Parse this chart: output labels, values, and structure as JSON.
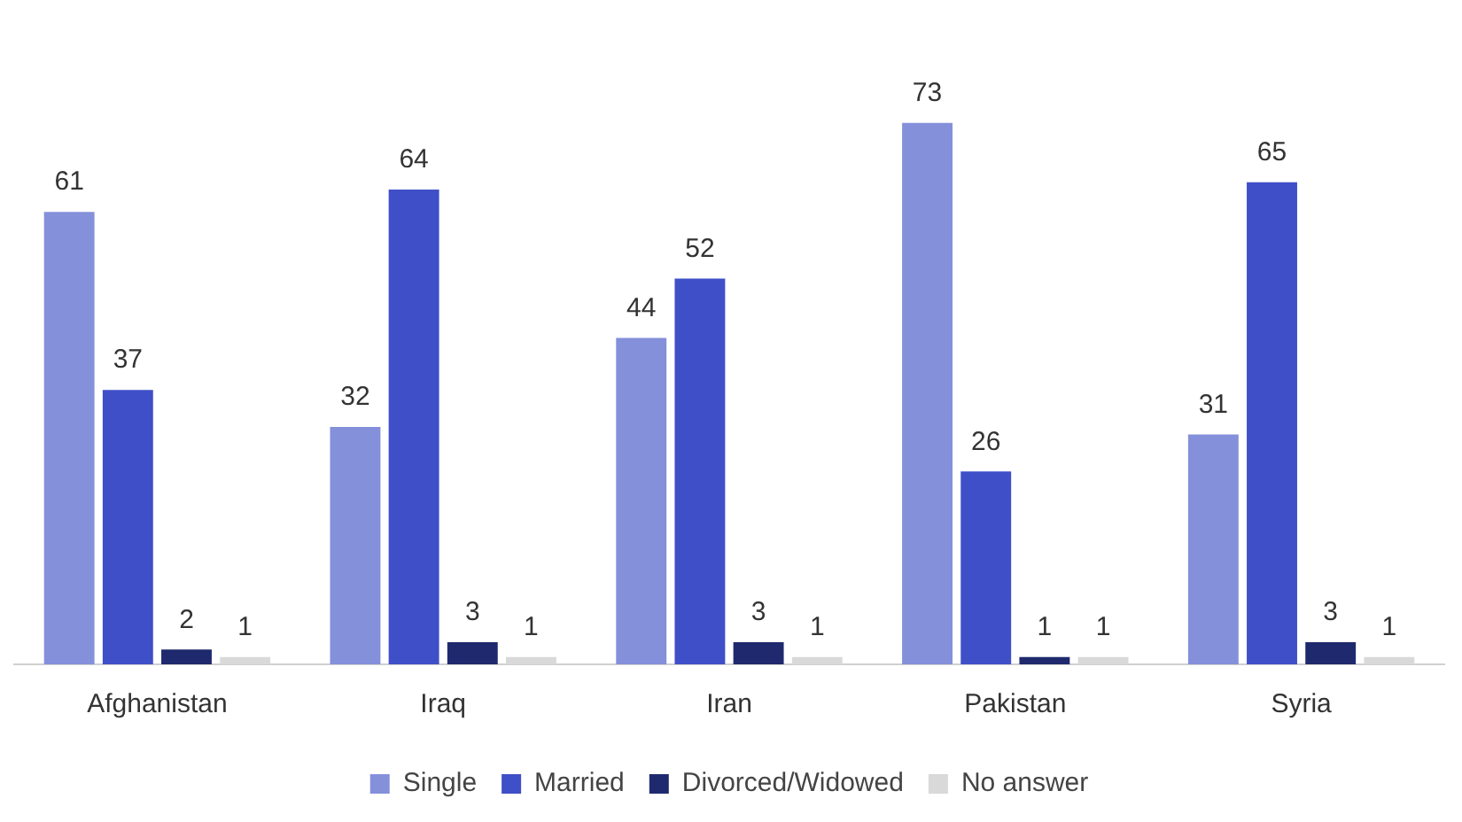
{
  "chart_data": {
    "type": "bar",
    "categories": [
      "Afghanistan",
      "Iraq",
      "Iran",
      "Pakistan",
      "Syria"
    ],
    "series": [
      {
        "name": "Single",
        "color": "#8490da",
        "values": [
          61,
          32,
          44,
          73,
          31
        ]
      },
      {
        "name": "Married",
        "color": "#3f4fc8",
        "values": [
          37,
          64,
          52,
          26,
          65
        ]
      },
      {
        "name": "Divorced/Widowed",
        "color": "#1f2a6e",
        "values": [
          2,
          3,
          3,
          1,
          3
        ]
      },
      {
        "name": "No answer",
        "color": "#d9d9d9",
        "values": [
          1,
          1,
          1,
          1,
          1
        ]
      }
    ],
    "data_labels": true,
    "grid": false,
    "legend": "bottom"
  }
}
